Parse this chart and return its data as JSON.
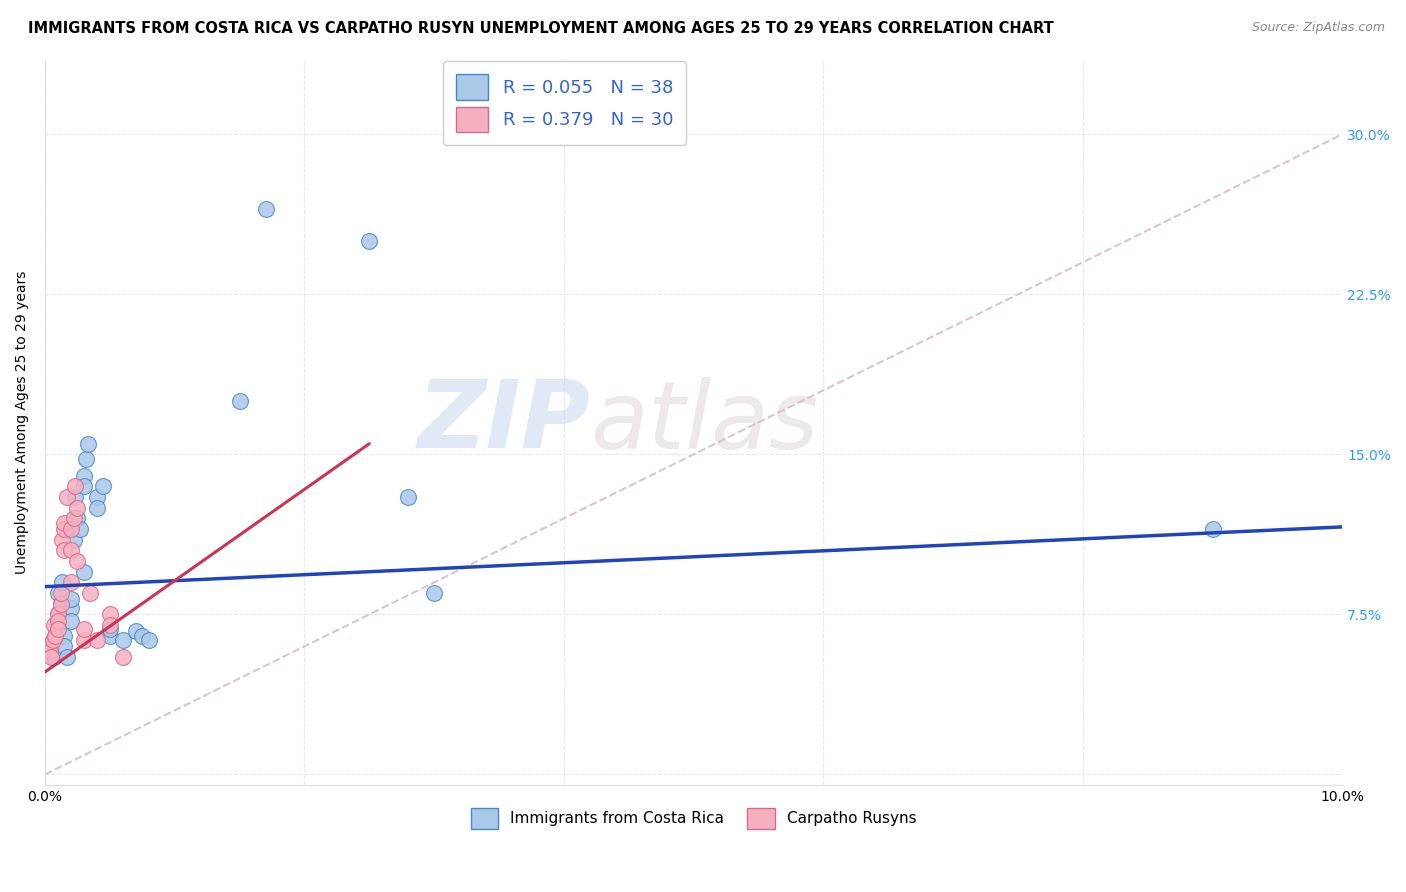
{
  "title": "IMMIGRANTS FROM COSTA RICA VS CARPATHO RUSYN UNEMPLOYMENT AMONG AGES 25 TO 29 YEARS CORRELATION CHART",
  "source": "Source: ZipAtlas.com",
  "ylabel": "Unemployment Among Ages 25 to 29 years",
  "xlim": [
    0,
    0.1
  ],
  "ylim": [
    -0.005,
    0.335
  ],
  "blue_r": "0.055",
  "blue_n": "38",
  "pink_r": "0.379",
  "pink_n": "30",
  "blue_color": "#aac8e8",
  "pink_color": "#f4b0c0",
  "blue_marker_edge": "#4488cc",
  "pink_marker_edge": "#dd6688",
  "blue_line_color": "#2244bb",
  "pink_line_color": "#cc3355",
  "diag_line_color": "#ddbbcc",
  "legend_label_blue": "Immigrants from Costa Rica",
  "legend_label_pink": "Carpatho Rusyns",
  "watermark_zip": "ZIP",
  "watermark_atlas": "atlas",
  "blue_x": [
    0.0005,
    0.0007,
    0.0008,
    0.001,
    0.001,
    0.001,
    0.0012,
    0.0013,
    0.0015,
    0.0015,
    0.0017,
    0.002,
    0.002,
    0.002,
    0.0022,
    0.0023,
    0.0025,
    0.0027,
    0.003,
    0.003,
    0.003,
    0.0032,
    0.0033,
    0.004,
    0.004,
    0.0045,
    0.005,
    0.005,
    0.006,
    0.007,
    0.0075,
    0.008,
    0.015,
    0.017,
    0.025,
    0.028,
    0.03,
    0.09
  ],
  "blue_y": [
    0.06,
    0.055,
    0.065,
    0.085,
    0.075,
    0.07,
    0.08,
    0.09,
    0.065,
    0.06,
    0.055,
    0.078,
    0.082,
    0.072,
    0.11,
    0.13,
    0.12,
    0.115,
    0.14,
    0.135,
    0.095,
    0.148,
    0.155,
    0.13,
    0.125,
    0.135,
    0.065,
    0.068,
    0.063,
    0.067,
    0.065,
    0.063,
    0.175,
    0.265,
    0.25,
    0.13,
    0.085,
    0.115
  ],
  "pink_x": [
    0.0003,
    0.0004,
    0.0005,
    0.0006,
    0.0007,
    0.0008,
    0.001,
    0.001,
    0.001,
    0.0012,
    0.0012,
    0.0013,
    0.0015,
    0.0015,
    0.0015,
    0.0017,
    0.002,
    0.002,
    0.002,
    0.0022,
    0.0023,
    0.0025,
    0.0025,
    0.003,
    0.003,
    0.0035,
    0.004,
    0.005,
    0.005,
    0.006
  ],
  "pink_y": [
    0.06,
    0.058,
    0.055,
    0.063,
    0.07,
    0.065,
    0.075,
    0.072,
    0.068,
    0.08,
    0.085,
    0.11,
    0.115,
    0.118,
    0.105,
    0.13,
    0.115,
    0.105,
    0.09,
    0.12,
    0.135,
    0.125,
    0.1,
    0.063,
    0.068,
    0.085,
    0.063,
    0.075,
    0.07,
    0.055
  ],
  "title_fontsize": 10.5,
  "axis_fontsize": 10,
  "tick_fontsize": 10,
  "right_tick_color": "#3399ff",
  "grid_color": "#e8e8e8"
}
